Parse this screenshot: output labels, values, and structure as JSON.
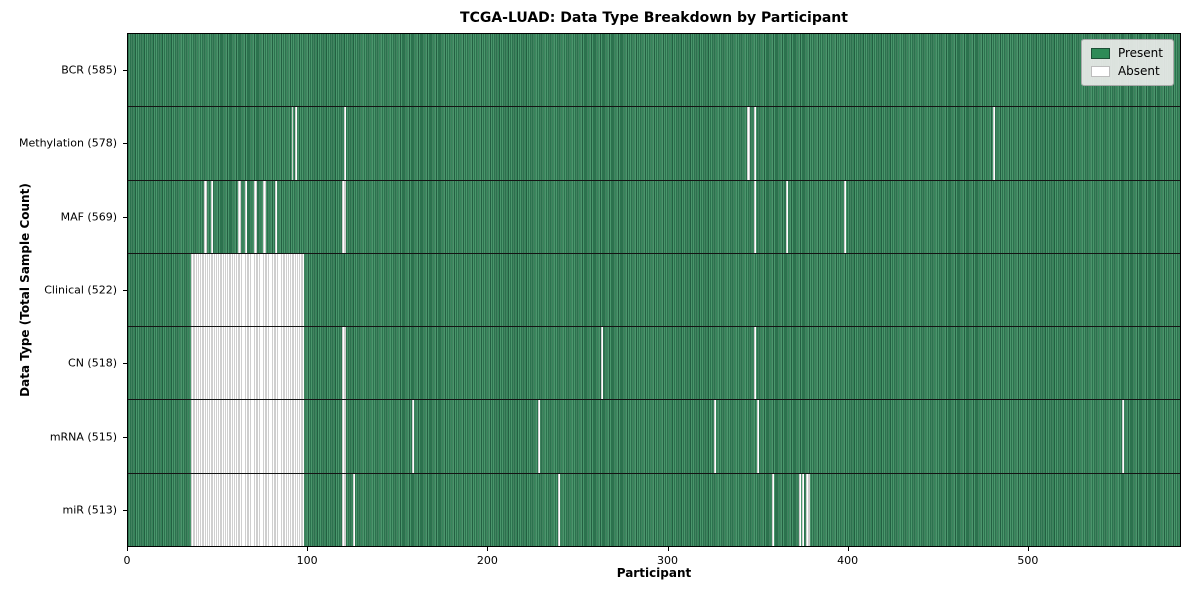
{
  "chart_data": {
    "type": "heatmap",
    "title": "TCGA-LUAD: Data Type Breakdown by Participant",
    "xlabel": "Participant",
    "ylabel": "Data Type (Total Sample Count)",
    "n_participants": 585,
    "x_ticks": [
      0,
      100,
      200,
      300,
      400,
      500
    ],
    "grid": false,
    "legend_position": "upper right",
    "legend": [
      {
        "label": "Present",
        "color": "#2e8b57"
      },
      {
        "label": "Absent",
        "color": "#ffffff"
      }
    ],
    "rows": [
      {
        "short": "bcr",
        "data_type": "BCR",
        "total": 585,
        "label": "BCR (585)",
        "absent_ranges": []
      },
      {
        "short": "methylation",
        "data_type": "Methylation",
        "total": 578,
        "label": "Methylation (578)",
        "absent_ranges": [
          [
            91,
            1
          ],
          [
            93,
            1
          ],
          [
            120,
            1
          ],
          [
            344,
            2
          ],
          [
            348,
            1
          ],
          [
            481,
            1
          ]
        ]
      },
      {
        "short": "maf",
        "data_type": "MAF",
        "total": 569,
        "label": "MAF (569)",
        "absent_ranges": [
          [
            42,
            2
          ],
          [
            46,
            1
          ],
          [
            61,
            2
          ],
          [
            65,
            1
          ],
          [
            70,
            2
          ],
          [
            75,
            2
          ],
          [
            82,
            1
          ],
          [
            119,
            2
          ],
          [
            348,
            1
          ],
          [
            366,
            1
          ],
          [
            398,
            1
          ]
        ]
      },
      {
        "short": "clinical",
        "data_type": "Clinical",
        "total": 522,
        "label": "Clinical (522)",
        "absent_ranges": [
          [
            35,
            63
          ]
        ]
      },
      {
        "short": "cn",
        "data_type": "CN",
        "total": 518,
        "label": "CN (518)",
        "absent_ranges": [
          [
            35,
            63
          ],
          [
            119,
            2
          ],
          [
            263,
            1
          ],
          [
            348,
            1
          ]
        ]
      },
      {
        "short": "mrna",
        "data_type": "mRNA",
        "total": 515,
        "label": "mRNA (515)",
        "absent_ranges": [
          [
            35,
            63
          ],
          [
            119,
            2
          ],
          [
            158,
            1
          ],
          [
            228,
            1
          ],
          [
            326,
            1
          ],
          [
            350,
            1
          ],
          [
            553,
            1
          ]
        ]
      },
      {
        "short": "mir",
        "data_type": "miR",
        "total": 513,
        "label": "miR (513)",
        "absent_ranges": [
          [
            35,
            63
          ],
          [
            119,
            2
          ],
          [
            125,
            1
          ],
          [
            239,
            1
          ],
          [
            358,
            1
          ],
          [
            373,
            1
          ],
          [
            375,
            1
          ],
          [
            377,
            2
          ]
        ]
      }
    ]
  },
  "colors": {
    "present_fill": "#2e8b57",
    "present_edge_dark": "#245f42",
    "present_edge_light": "#5fa67f",
    "absent_fill": "#ffffff",
    "absent_edge": "#9f9f9f",
    "plot_border": "#000000",
    "row_separator": "#141414",
    "legend_bg": "#eaece9",
    "legend_border": "#a9a9a9",
    "background": "#ffffff",
    "text": "#000000"
  }
}
